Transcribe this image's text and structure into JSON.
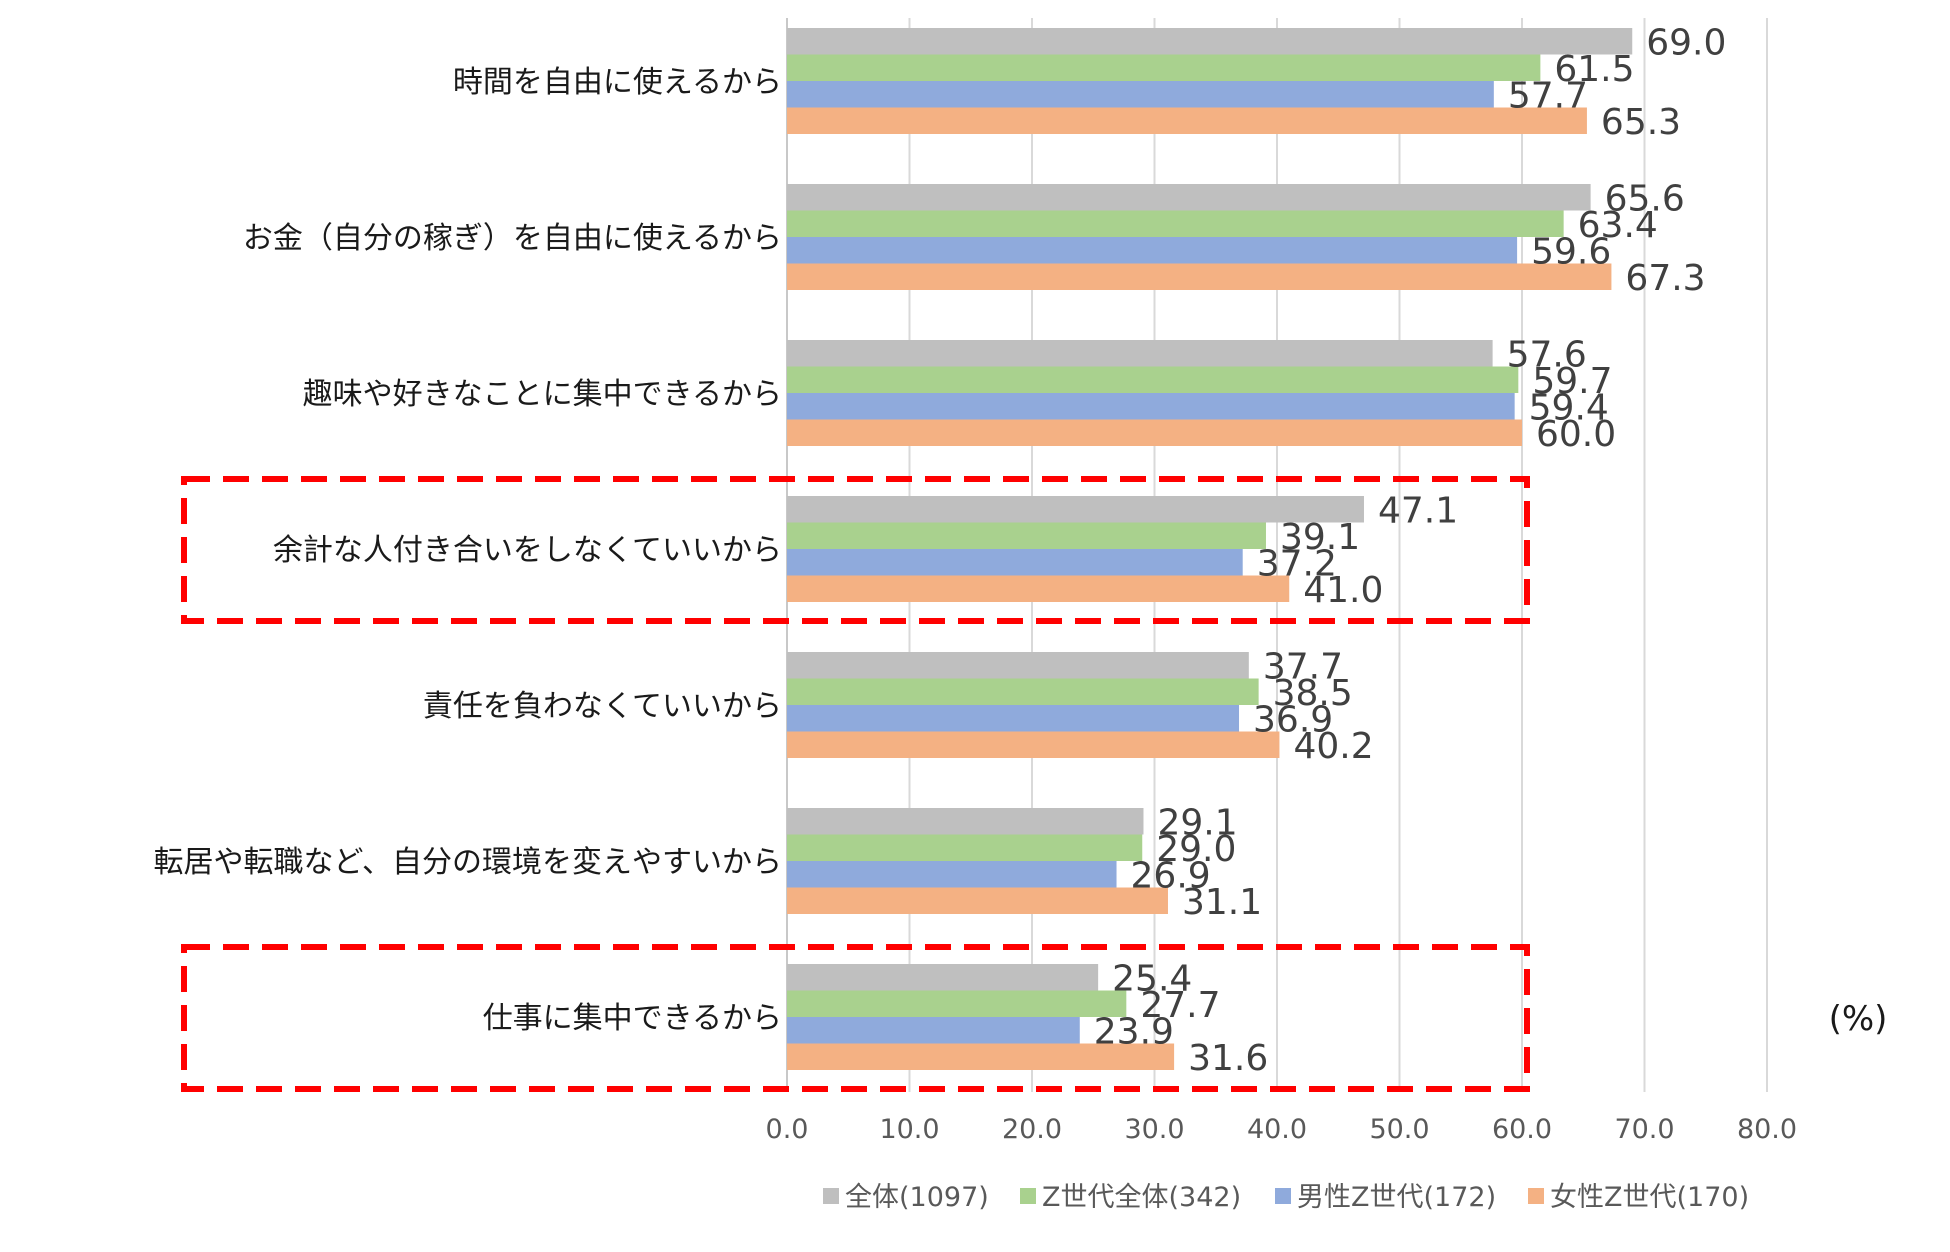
{
  "chart_data": {
    "type": "bar",
    "orientation": "horizontal",
    "categories": [
      "時間を自由に使えるから",
      "お金（自分の稼ぎ）を自由に使えるから",
      "趣味や好きなことに集中できるから",
      "余計な人付き合いをしなくていいから",
      "責任を負わなくていいから",
      "転居や転職など、自分の環境を変えやすいから",
      "仕事に集中できるから"
    ],
    "series": [
      {
        "name": "全体(1097)",
        "color": "#bfbfbf",
        "values": [
          69.0,
          65.6,
          57.6,
          47.1,
          37.7,
          29.1,
          25.4
        ]
      },
      {
        "name": "Z世代全体(342)",
        "color": "#a9d18e",
        "values": [
          61.5,
          63.4,
          59.7,
          39.1,
          38.5,
          29.0,
          27.7
        ]
      },
      {
        "name": "男性Z世代(172)",
        "color": "#8faadc",
        "values": [
          57.7,
          59.6,
          59.4,
          37.2,
          36.9,
          26.9,
          23.9
        ]
      },
      {
        "name": "女性Z世代(170)",
        "color": "#f4b183",
        "values": [
          65.3,
          67.3,
          60.0,
          41.0,
          40.2,
          31.1,
          31.6
        ]
      }
    ],
    "xlim": [
      0,
      80
    ],
    "xticks": [
      "0.0",
      "10.0",
      "20.0",
      "30.0",
      "40.0",
      "50.0",
      "60.0",
      "70.0",
      "80.0"
    ],
    "unit_label": "(%)",
    "highlighted_categories": [
      3,
      6
    ],
    "highlight_color": "#ff0000",
    "grid": true,
    "legend_position": "bottom"
  }
}
